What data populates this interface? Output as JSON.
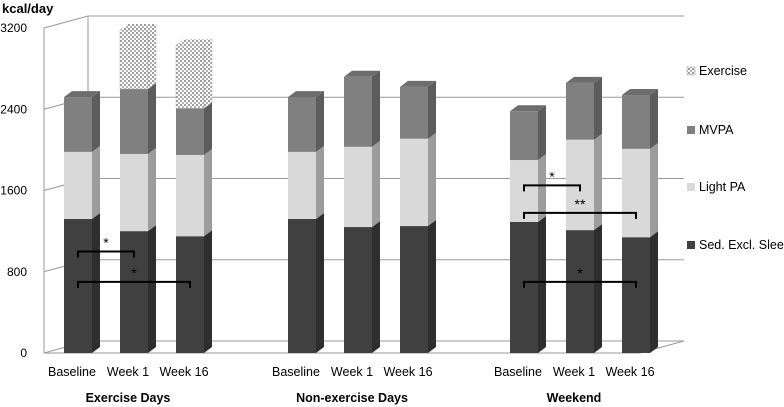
{
  "chart_data": {
    "type": "bar",
    "stacked": true,
    "ylabel": "kcal/day",
    "ylim": [
      0,
      3200
    ],
    "yticks": [
      "0",
      "800",
      "1600",
      "2400",
      "3200"
    ],
    "grid": true,
    "legend_position": "right",
    "groups": [
      {
        "name": "Exercise Days",
        "categories": [
          "Baseline",
          "Week 1",
          "Week 16"
        ]
      },
      {
        "name": "Non-exercise Days",
        "categories": [
          "Baseline",
          "Week 1",
          "Week 16"
        ]
      },
      {
        "name": "Weekend",
        "categories": [
          "Baseline",
          "Week 1",
          "Week 16"
        ]
      }
    ],
    "series": [
      {
        "name": "Sed. Excl. Sleep",
        "color": "#404040",
        "values": [
          1320,
          1200,
          1150,
          1320,
          1240,
          1250,
          1290,
          1210,
          1140
        ]
      },
      {
        "name": "Light PA",
        "color": "#d9d9d9",
        "values": [
          660,
          760,
          800,
          660,
          790,
          860,
          610,
          890,
          870
        ]
      },
      {
        "name": "MVPA",
        "color": "#808080",
        "values": [
          540,
          640,
          460,
          540,
          690,
          510,
          480,
          560,
          530
        ]
      },
      {
        "name": "Exercise",
        "color": "#e6e6e6",
        "pattern": "dotted",
        "values": [
          0,
          580,
          620,
          0,
          0,
          0,
          0,
          0,
          0
        ]
      }
    ],
    "significance": [
      {
        "group": "Exercise Days",
        "from": "Baseline",
        "to": "Week 1",
        "label": "*",
        "level": 1000
      },
      {
        "group": "Exercise Days",
        "from": "Baseline",
        "to": "Week 16",
        "label": "*",
        "level": 700
      },
      {
        "group": "Weekend",
        "from": "Baseline",
        "to": "Week 1",
        "label": "*",
        "level": 1650
      },
      {
        "group": "Weekend",
        "from": "Baseline",
        "to": "Week 16",
        "label": "**",
        "level": 1380
      },
      {
        "group": "Weekend",
        "from": "Baseline",
        "to": "Week 16",
        "label": "*",
        "level": 700
      }
    ]
  }
}
